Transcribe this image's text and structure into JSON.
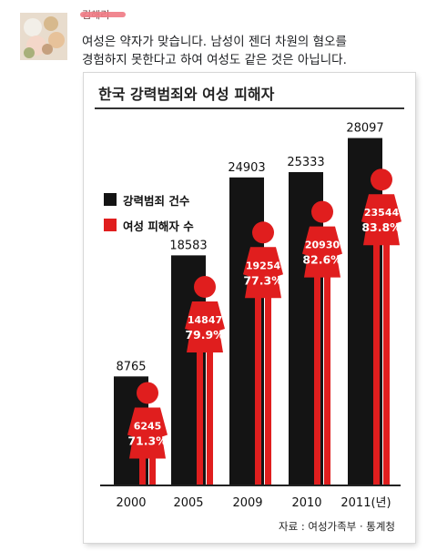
{
  "post": {
    "author": "김해리",
    "lines": [
      "여성은 약자가 맞습니다. 남성이 젠더 차원의 혐오를",
      "경험하지 못한다고 하여 여성도 같은 것은 아닙니다."
    ]
  },
  "colors": {
    "bar": "#141414",
    "women": "#e01e1e",
    "text_on_red": "#ffffff"
  },
  "chart_data": {
    "type": "bar",
    "title": "한국 강력범죄와 여성 피해자",
    "categories": [
      "2000",
      "2005",
      "2009",
      "2010",
      "2011(년)"
    ],
    "series": [
      {
        "name": "강력범죄 건수",
        "values": [
          8765,
          18583,
          24903,
          25333,
          28097
        ]
      },
      {
        "name": "여성 피해자 수",
        "values": [
          6245,
          14847,
          19254,
          20930,
          23544
        ]
      }
    ],
    "value_labels": [
      "8765",
      "18583",
      "24903",
      "25333",
      "28097"
    ],
    "women_labels": [
      "6245",
      "14847",
      "19254",
      "20930",
      "23544"
    ],
    "percent_labels": [
      "71.3%",
      "79.9%",
      "77.3%",
      "82.6%",
      "83.8%"
    ],
    "legend_position": "left",
    "source": "자료 : 여성가족부 · 통계청"
  }
}
